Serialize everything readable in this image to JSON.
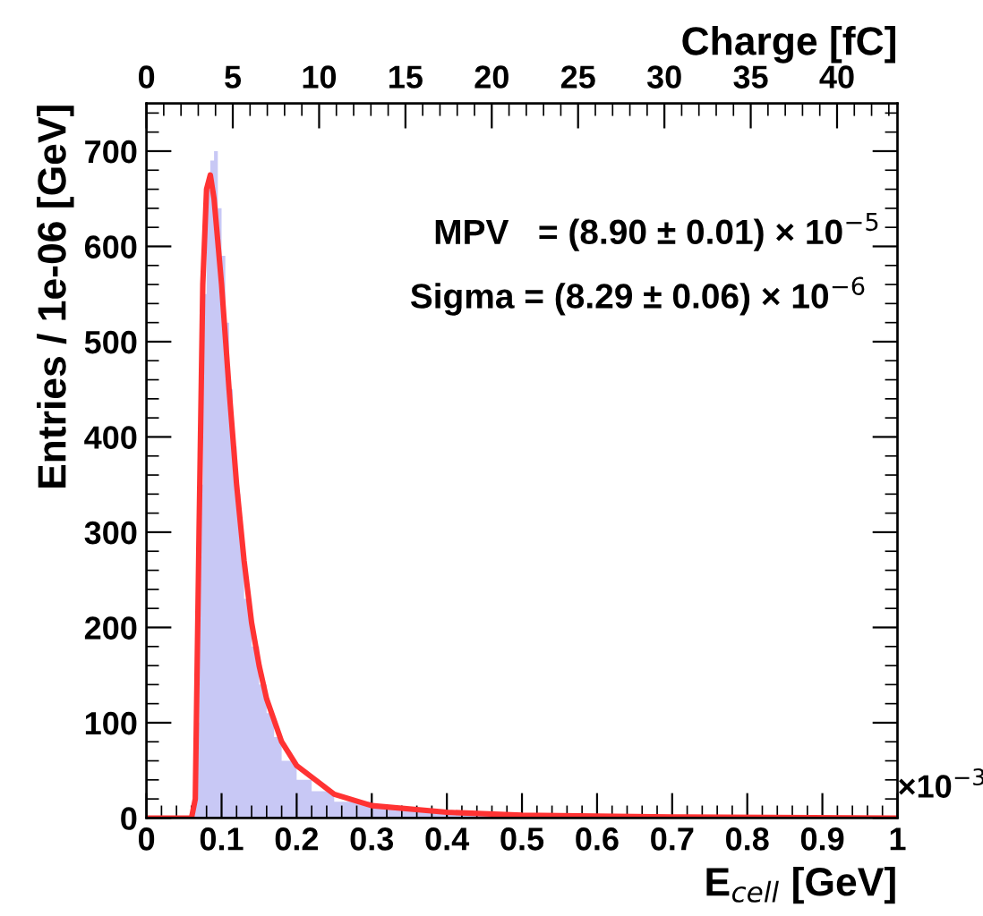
{
  "chart_data": {
    "type": "histogram",
    "xlabel": "E$_{cell}$ [GeV]",
    "ylabel": "Entries / 1e-06 [GeV]",
    "x2label": "Charge [fC]",
    "bins": [
      0.06,
      0.065,
      0.07,
      0.075,
      0.08,
      0.085,
      0.09,
      0.095,
      0.1,
      0.105,
      0.11,
      0.115,
      0.12,
      0.125,
      0.13,
      0.14,
      0.15,
      0.16,
      0.17,
      0.18,
      0.2,
      0.22,
      0.25,
      0.3,
      0.35,
      0.4,
      0.5,
      0.7,
      1.0
    ],
    "values": [
      10,
      100,
      350,
      550,
      660,
      690,
      700,
      640,
      590,
      520,
      450,
      390,
      340,
      290,
      230,
      180,
      140,
      110,
      85,
      60,
      40,
      28,
      17,
      10,
      7,
      4,
      2,
      1
    ],
    "color": "#c8c8f5",
    "series": [
      {
        "type": "line",
        "color": "#ff3333",
        "x": [
          0.0,
          0.06,
          0.065,
          0.07,
          0.075,
          0.08,
          0.085,
          0.09,
          0.1,
          0.11,
          0.12,
          0.13,
          0.14,
          0.15,
          0.16,
          0.18,
          0.2,
          0.25,
          0.3,
          0.4,
          0.5,
          0.7,
          1.0
        ],
        "values": [
          0,
          0,
          20,
          300,
          560,
          660,
          675,
          650,
          560,
          450,
          350,
          270,
          205,
          160,
          125,
          80,
          55,
          25,
          13,
          6,
          3,
          1,
          0
        ]
      }
    ],
    "xlim": [
      0,
      1
    ],
    "xticks": [
      0,
      0.1,
      0.2,
      0.3,
      0.4,
      0.5,
      0.6,
      0.7,
      0.8,
      0.9,
      1
    ],
    "ylim": [
      0,
      750
    ],
    "yticks": [
      0,
      100,
      200,
      300,
      400,
      500,
      600,
      700
    ],
    "x2lim": [
      0,
      43.5
    ],
    "x2ticks": [
      0,
      5,
      10,
      15,
      20,
      25,
      30,
      35,
      40
    ],
    "grid": false,
    "legend": false,
    "annotations": [
      "MPV   = (8.90 ± 0.01) × 10$^{−5}$",
      "Sigma = (8.29 ± 0.06) × 10$^{−6}$",
      "×10$^{−3}$"
    ]
  }
}
